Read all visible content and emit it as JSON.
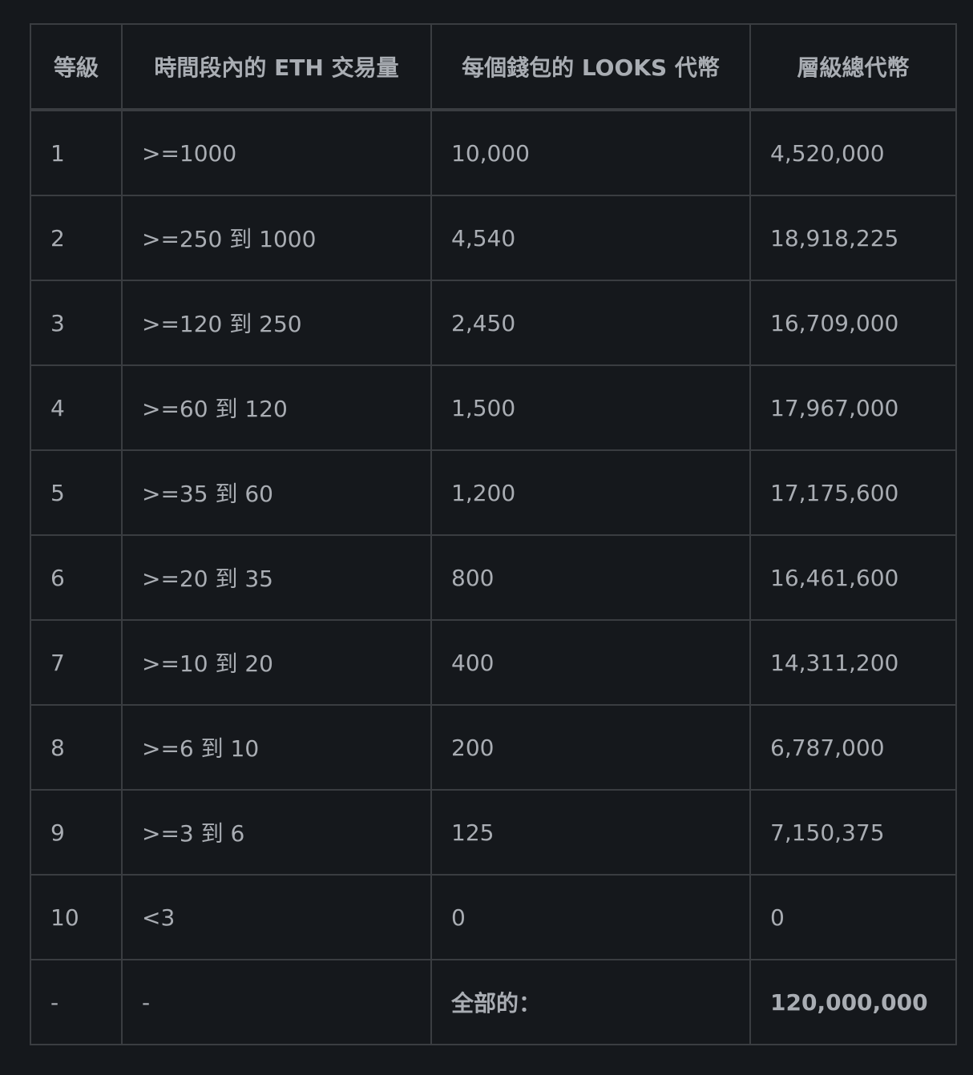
{
  "headers": [
    "等級",
    "時間段內的 ETH 交易量",
    "每個錢包的 LOOKS 代幣",
    "層級總代幣"
  ],
  "rows": [
    [
      "1",
      ">=1000",
      "10,000",
      "4,520,000"
    ],
    [
      "2",
      ">=250 到 1000",
      "4,540",
      "18,918,225"
    ],
    [
      "3",
      ">=120 到 250",
      "2,450",
      "16,709,000"
    ],
    [
      "4",
      ">=60 到 120",
      "1,500",
      "17,967,000"
    ],
    [
      "5",
      ">=35 到 60",
      "1,200",
      "17,175,600"
    ],
    [
      "6",
      ">=20 到 35",
      "800",
      "16,461,600"
    ],
    [
      "7",
      ">=10 到 20",
      "400",
      "14,311,200"
    ],
    [
      "8",
      ">=6 到 10",
      "200",
      "6,787,000"
    ],
    [
      "9",
      ">=3 到 6",
      "125",
      "7,150,375"
    ],
    [
      "10",
      "<3",
      "0",
      "0"
    ],
    [
      "-",
      "-",
      "全部的：",
      "120,000,000"
    ]
  ]
}
